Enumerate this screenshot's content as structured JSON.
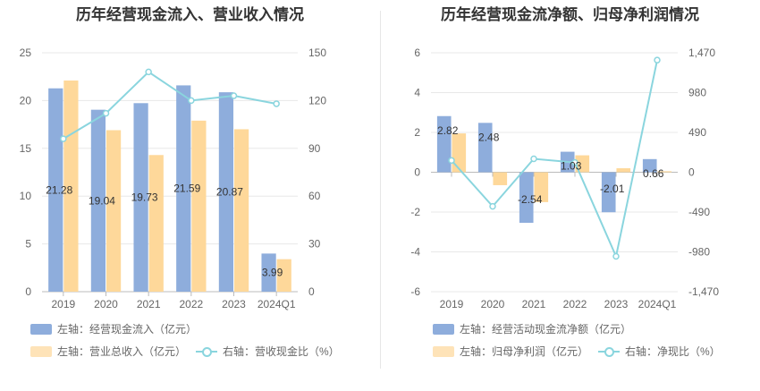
{
  "left": {
    "title": "历年经营现金流入、营业收入情况",
    "legend": {
      "series1": "左轴：经营现金流入（亿元）",
      "series2": "左轴：营业总收入（亿元）",
      "series3": "右轴：营收现金比（%）"
    }
  },
  "right": {
    "title": "历年经营现金流净额、归母净利润情况",
    "legend": {
      "series1": "左轴：经营活动现金流净额（亿元）",
      "series2": "左轴：归母净利润（亿元）",
      "series3": "右轴：净现比（%）"
    }
  },
  "chart_data": [
    {
      "type": "bar",
      "title": "历年经营现金流入、营业收入情况",
      "categories": [
        "2019",
        "2020",
        "2021",
        "2022",
        "2023",
        "2024Q1"
      ],
      "y_left": {
        "range": [
          0,
          25
        ],
        "ticks": [
          "0",
          "5",
          "10",
          "15",
          "20",
          "25"
        ]
      },
      "y_right": {
        "range": [
          0,
          150
        ],
        "ticks": [
          "0",
          "30",
          "60",
          "90",
          "120",
          "150"
        ]
      },
      "series": [
        {
          "name": "左轴：经营现金流入（亿元）",
          "axis": "left",
          "kind": "bar",
          "color": "#8eaddc",
          "values": [
            21.28,
            19.04,
            19.73,
            21.59,
            20.87,
            3.99
          ],
          "labels": [
            "21.28",
            "19.04",
            "19.73",
            "21.59",
            "20.87",
            "3.99"
          ]
        },
        {
          "name": "左轴：营业总收入（亿元）",
          "axis": "left",
          "kind": "bar",
          "color": "#fed89a",
          "values": [
            22.1,
            16.9,
            14.3,
            17.9,
            17.0,
            3.4
          ]
        },
        {
          "name": "右轴：营收现金比（%）",
          "axis": "right",
          "kind": "line",
          "color": "#8ad5de",
          "values": [
            96,
            112,
            138,
            120,
            123,
            118
          ]
        }
      ],
      "grid": true
    },
    {
      "type": "bar",
      "title": "历年经营现金流净额、归母净利润情况",
      "categories": [
        "2019",
        "2020",
        "2021",
        "2022",
        "2023",
        "2024Q1"
      ],
      "y_left": {
        "range": [
          -6,
          6
        ],
        "ticks": [
          "-6",
          "-4",
          "-2",
          "0",
          "2",
          "4",
          "6"
        ]
      },
      "y_right": {
        "range": [
          -1470,
          1470
        ],
        "ticks": [
          "-1,470",
          "-980",
          "-490",
          "0",
          "490",
          "980",
          "1,470"
        ]
      },
      "series": [
        {
          "name": "左轴：经营活动现金流净额（亿元）",
          "axis": "left",
          "kind": "bar",
          "color": "#8eaddc",
          "values": [
            2.82,
            2.48,
            -2.54,
            1.03,
            -2.01,
            0.66
          ],
          "labels": [
            "2.82",
            "2.48",
            "-2.54",
            "1.03",
            "-2.01",
            "0.66"
          ]
        },
        {
          "name": "左轴：归母净利润（亿元）",
          "axis": "left",
          "kind": "bar",
          "color": "#fed89a",
          "values": [
            1.95,
            -0.65,
            -1.5,
            0.85,
            0.2,
            0.05
          ]
        },
        {
          "name": "右轴：净现比（%）",
          "axis": "right",
          "kind": "line",
          "color": "#8ad5de",
          "values": [
            145,
            -420,
            165,
            120,
            -1035,
            1380
          ]
        }
      ],
      "grid": true
    }
  ]
}
